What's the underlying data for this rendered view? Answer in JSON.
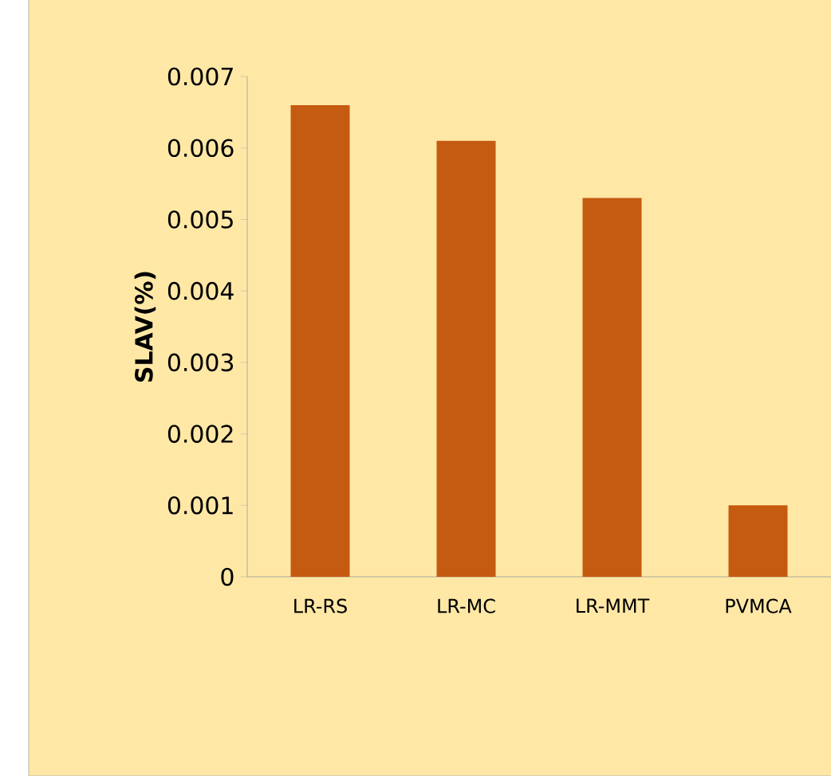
{
  "chart_data": {
    "type": "bar",
    "ylabel": "SLAV(%)",
    "categories": [
      "LR-RS",
      "LR-MC",
      "LR-MMT",
      "PVMCA"
    ],
    "values": [
      0.0066,
      0.0061,
      0.0053,
      0.001
    ],
    "color": "#c55a11",
    "ylim": [
      0,
      0.007
    ],
    "yticks": [
      0,
      0.001,
      0.002,
      0.003,
      0.004,
      0.005,
      0.006,
      0.007
    ]
  }
}
